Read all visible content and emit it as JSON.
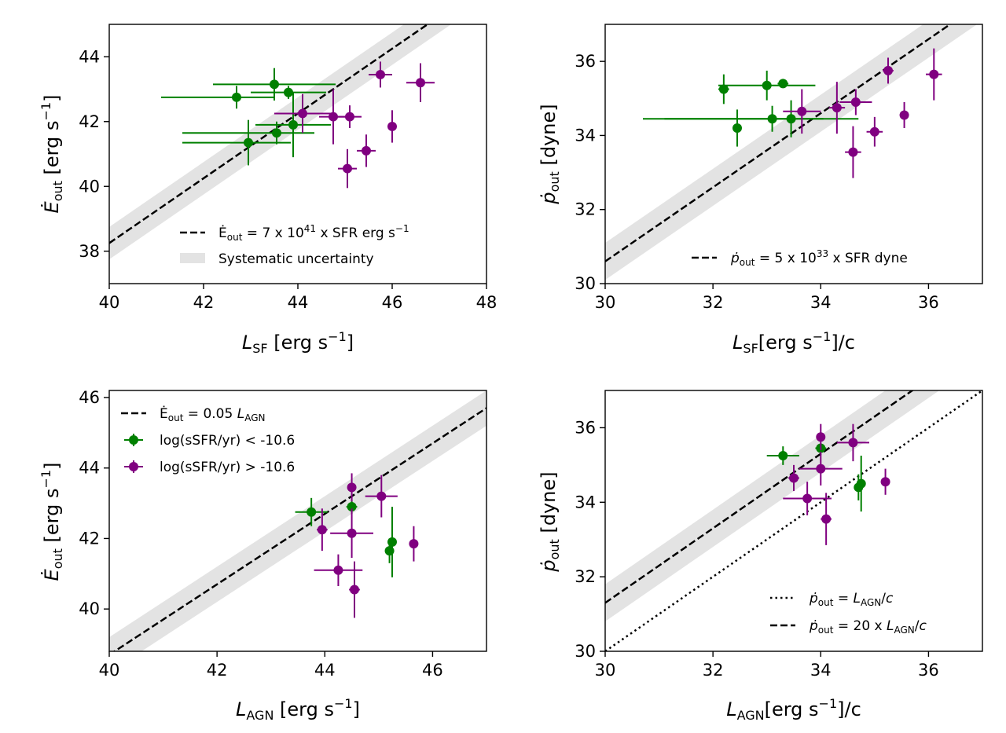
{
  "colors": {
    "sfr_low": "#008000",
    "sfr_high": "#800080",
    "band": "#e3e3e3",
    "line": "#000000"
  },
  "chart_data": [
    {
      "type": "scatter",
      "xlabel": "L_SF [erg s^-1]",
      "ylabel": "Ė_out [erg s^-1]",
      "xlim": [
        40,
        48
      ],
      "ylim": [
        37,
        45
      ],
      "xticks": [
        "40",
        "42",
        "44",
        "46",
        "48"
      ],
      "yticks": [
        "38",
        "40",
        "42",
        "44"
      ],
      "legend_position": "lower-right",
      "lines": [
        {
          "style": "dashed",
          "intercept": 38.25,
          "slope": 1,
          "band": 0.5,
          "label": "Ė_out = 7 x 10^41 x SFR erg s^-1"
        }
      ],
      "band_label": "Systematic uncertainty",
      "series": [
        {
          "name": "log(sSFR/yr) < -10.6",
          "color_key": "sfr_low",
          "points": [
            {
              "x": 42.7,
              "y": 42.75,
              "xerr": [
                1.6,
                0.8
              ],
              "yerr": [
                0.35,
                0.35
              ]
            },
            {
              "x": 43.5,
              "y": 43.15,
              "xerr": [
                1.3,
                1.3
              ],
              "yerr": [
                0.5,
                0.5
              ]
            },
            {
              "x": 43.8,
              "y": 42.9,
              "xerr": [
                0.8,
                0.8
              ],
              "yerr": [
                0.2,
                0.2
              ]
            },
            {
              "x": 43.9,
              "y": 41.9,
              "xerr": [
                0.8,
                0.8
              ],
              "yerr": [
                1.0,
                1.0
              ]
            },
            {
              "x": 43.55,
              "y": 41.65,
              "xerr": [
                2.0,
                0.8
              ],
              "yerr": [
                0.35,
                0.35
              ]
            },
            {
              "x": 42.95,
              "y": 41.35,
              "xerr": [
                1.4,
                0.9
              ],
              "yerr": [
                0.7,
                0.7
              ]
            }
          ]
        },
        {
          "name": "log(sSFR/yr) > -10.6",
          "color_key": "sfr_high",
          "points": [
            {
              "x": 45.75,
              "y": 43.45,
              "xerr": [
                0.25,
                0.25
              ],
              "yerr": [
                0.4,
                0.4
              ]
            },
            {
              "x": 46.6,
              "y": 43.2,
              "xerr": [
                0.3,
                0.3
              ],
              "yerr": [
                0.6,
                0.6
              ]
            },
            {
              "x": 44.1,
              "y": 42.25,
              "xerr": [
                0.6,
                0.6
              ],
              "yerr": [
                0.6,
                0.6
              ]
            },
            {
              "x": 44.75,
              "y": 42.15,
              "xerr": [
                0.3,
                0.3
              ],
              "yerr": [
                0.85,
                0.85
              ]
            },
            {
              "x": 45.1,
              "y": 42.15,
              "xerr": [
                0.25,
                0.25
              ],
              "yerr": [
                0.35,
                0.35
              ]
            },
            {
              "x": 46.0,
              "y": 41.85,
              "xerr": [
                0.05,
                0.05
              ],
              "yerr": [
                0.5,
                0.5
              ]
            },
            {
              "x": 45.45,
              "y": 41.1,
              "xerr": [
                0.2,
                0.2
              ],
              "yerr": [
                0.5,
                0.5
              ]
            },
            {
              "x": 45.05,
              "y": 40.55,
              "xerr": [
                0.2,
                0.2
              ],
              "yerr": [
                0.6,
                0.6
              ]
            }
          ]
        }
      ]
    },
    {
      "type": "scatter",
      "xlabel": "L_SF[erg s^-1]/c",
      "ylabel": "ṗ_out [dyne]",
      "xlim": [
        30,
        37
      ],
      "ylim": [
        30,
        37
      ],
      "xticks": [
        "30",
        "32",
        "34",
        "36"
      ],
      "yticks": [
        "30",
        "32",
        "34",
        "36"
      ],
      "legend_position": "lower-right",
      "lines": [
        {
          "style": "dashed",
          "intercept": 30.6,
          "slope": 1,
          "band": 0.5,
          "label": "ṗ_out = 5 x 10^33 x SFR dyne"
        }
      ],
      "series": [
        {
          "name": "log(sSFR/yr) < -10.6",
          "color_key": "sfr_low",
          "points": [
            {
              "x": 32.2,
              "y": 35.25,
              "xerr": [
                0.1,
                0.1
              ],
              "yerr": [
                0.4,
                0.4
              ]
            },
            {
              "x": 33.0,
              "y": 35.35,
              "xerr": [
                0.9,
                0.9
              ],
              "yerr": [
                0.4,
                0.4
              ]
            },
            {
              "x": 33.3,
              "y": 35.4,
              "xerr": [
                0.1,
                0.1
              ],
              "yerr": [
                0.1,
                0.1
              ]
            },
            {
              "x": 33.1,
              "y": 34.45,
              "xerr": [
                2.4,
                1.6
              ],
              "yerr": [
                0.35,
                0.35
              ]
            },
            {
              "x": 33.45,
              "y": 34.45,
              "xerr": [
                2.35,
                0.6
              ],
              "yerr": [
                0.5,
                0.5
              ]
            },
            {
              "x": 32.45,
              "y": 34.2,
              "xerr": [
                0.05,
                0.05
              ],
              "yerr": [
                0.5,
                0.5
              ]
            }
          ]
        },
        {
          "name": "log(sSFR/yr) > -10.6",
          "color_key": "sfr_high",
          "points": [
            {
              "x": 35.25,
              "y": 35.75,
              "xerr": [
                0.1,
                0.1
              ],
              "yerr": [
                0.35,
                0.35
              ]
            },
            {
              "x": 36.1,
              "y": 35.65,
              "xerr": [
                0.15,
                0.15
              ],
              "yerr": [
                0.7,
                0.7
              ]
            },
            {
              "x": 33.65,
              "y": 34.65,
              "xerr": [
                0.35,
                0.35
              ],
              "yerr": [
                0.6,
                0.6
              ]
            },
            {
              "x": 34.3,
              "y": 34.75,
              "xerr": [
                0.15,
                0.15
              ],
              "yerr": [
                0.7,
                0.7
              ]
            },
            {
              "x": 34.65,
              "y": 34.9,
              "xerr": [
                0.3,
                0.3
              ],
              "yerr": [
                0.35,
                0.35
              ]
            },
            {
              "x": 35.55,
              "y": 34.55,
              "xerr": [
                0.05,
                0.05
              ],
              "yerr": [
                0.35,
                0.35
              ]
            },
            {
              "x": 35.0,
              "y": 34.1,
              "xerr": [
                0.15,
                0.15
              ],
              "yerr": [
                0.4,
                0.4
              ]
            },
            {
              "x": 34.6,
              "y": 33.55,
              "xerr": [
                0.15,
                0.15
              ],
              "yerr": [
                0.7,
                0.7
              ]
            }
          ]
        }
      ]
    },
    {
      "type": "scatter",
      "xlabel": "L_AGN [erg s^-1]",
      "ylabel": "Ė_out [erg s^-1]",
      "xlim": [
        40,
        47
      ],
      "ylim": [
        38.8,
        46.2
      ],
      "xticks": [
        "40",
        "42",
        "44",
        "46"
      ],
      "yticks": [
        "40",
        "42",
        "44",
        "46"
      ],
      "legend_position": "upper-left",
      "lines": [
        {
          "style": "dashed",
          "intercept": 38.7,
          "slope": 1,
          "band": 0.5,
          "label": "Ė_out = 0.05 L_AGN"
        }
      ],
      "series": [
        {
          "name": "log(sSFR/yr) < -10.6",
          "color_key": "sfr_low",
          "points": [
            {
              "x": 43.75,
              "y": 42.75,
              "xerr": [
                0.3,
                0.3
              ],
              "yerr": [
                0.4,
                0.4
              ]
            },
            {
              "x": 44.5,
              "y": 42.9,
              "xerr": [
                0.1,
                0.1
              ],
              "yerr": [
                0.2,
                0.2
              ]
            },
            {
              "x": 45.25,
              "y": 41.9,
              "xerr": [
                0.05,
                0.05
              ],
              "yerr": [
                1.0,
                1.0
              ]
            },
            {
              "x": 45.2,
              "y": 41.65,
              "xerr": [
                0.05,
                0.05
              ],
              "yerr": [
                0.35,
                0.35
              ]
            }
          ]
        },
        {
          "name": "log(sSFR/yr) > -10.6",
          "color_key": "sfr_high",
          "points": [
            {
              "x": 44.5,
              "y": 43.45,
              "xerr": [
                0.05,
                0.05
              ],
              "yerr": [
                0.4,
                0.4
              ]
            },
            {
              "x": 45.05,
              "y": 43.2,
              "xerr": [
                0.3,
                0.3
              ],
              "yerr": [
                0.6,
                0.6
              ]
            },
            {
              "x": 43.95,
              "y": 42.25,
              "xerr": [
                0.1,
                0.1
              ],
              "yerr": [
                0.6,
                0.6
              ]
            },
            {
              "x": 44.5,
              "y": 42.15,
              "xerr": [
                0.4,
                0.4
              ],
              "yerr": [
                0.7,
                0.7
              ]
            },
            {
              "x": 45.65,
              "y": 41.85,
              "xerr": [
                0.05,
                0.05
              ],
              "yerr": [
                0.5,
                0.5
              ]
            },
            {
              "x": 44.25,
              "y": 41.1,
              "xerr": [
                0.45,
                0.45
              ],
              "yerr": [
                0.45,
                0.45
              ]
            },
            {
              "x": 44.55,
              "y": 40.55,
              "xerr": [
                0.1,
                0.1
              ],
              "yerr": [
                0.8,
                0.8
              ]
            }
          ]
        }
      ],
      "legend_entries": [
        "Ė_out = 0.05 L_AGN",
        "log(sSFR/yr) < -10.6",
        "log(sSFR/yr) > -10.6"
      ]
    },
    {
      "type": "scatter",
      "xlabel": "L_AGN[erg s^-1]/c",
      "ylabel": "ṗ_out [dyne]",
      "xlim": [
        30,
        37
      ],
      "ylim": [
        30,
        37
      ],
      "xticks": [
        "30",
        "32",
        "34",
        "36"
      ],
      "yticks": [
        "30",
        "32",
        "34",
        "36"
      ],
      "legend_position": "lower-right",
      "lines": [
        {
          "style": "dotted",
          "intercept": 30.0,
          "slope": 1,
          "band": 0,
          "label": "ṗ_out = L_AGN/c"
        },
        {
          "style": "dashed",
          "intercept": 31.3,
          "slope": 1,
          "band": 0.5,
          "label": "ṗ_out = 20 x L_AGN/c"
        }
      ],
      "series": [
        {
          "name": "log(sSFR/yr) < -10.6",
          "color_key": "sfr_low",
          "points": [
            {
              "x": 33.3,
              "y": 35.25,
              "xerr": [
                0.3,
                0.3
              ],
              "yerr": [
                0.25,
                0.25
              ]
            },
            {
              "x": 34.0,
              "y": 35.45,
              "xerr": [
                0.1,
                0.1
              ],
              "yerr": [
                0.1,
                0.1
              ]
            },
            {
              "x": 34.75,
              "y": 34.5,
              "xerr": [
                0.05,
                0.05
              ],
              "yerr": [
                0.75,
                0.75
              ]
            },
            {
              "x": 34.7,
              "y": 34.4,
              "xerr": [
                0.05,
                0.05
              ],
              "yerr": [
                0.35,
                0.35
              ]
            }
          ]
        },
        {
          "name": "log(sSFR/yr) > -10.6",
          "color_key": "sfr_high",
          "points": [
            {
              "x": 34.0,
              "y": 35.75,
              "xerr": [
                0.05,
                0.05
              ],
              "yerr": [
                0.35,
                0.35
              ]
            },
            {
              "x": 34.6,
              "y": 35.6,
              "xerr": [
                0.3,
                0.3
              ],
              "yerr": [
                0.5,
                0.5
              ]
            },
            {
              "x": 33.5,
              "y": 34.65,
              "xerr": [
                0.1,
                0.1
              ],
              "yerr": [
                0.35,
                0.35
              ]
            },
            {
              "x": 34.0,
              "y": 34.9,
              "xerr": [
                0.4,
                0.4
              ],
              "yerr": [
                0.45,
                0.45
              ]
            },
            {
              "x": 35.2,
              "y": 34.55,
              "xerr": [
                0.05,
                0.05
              ],
              "yerr": [
                0.35,
                0.35
              ]
            },
            {
              "x": 33.75,
              "y": 34.1,
              "xerr": [
                0.45,
                0.45
              ],
              "yerr": [
                0.45,
                0.45
              ]
            },
            {
              "x": 34.1,
              "y": 33.55,
              "xerr": [
                0.1,
                0.1
              ],
              "yerr": [
                0.7,
                0.7
              ]
            }
          ]
        }
      ]
    }
  ]
}
